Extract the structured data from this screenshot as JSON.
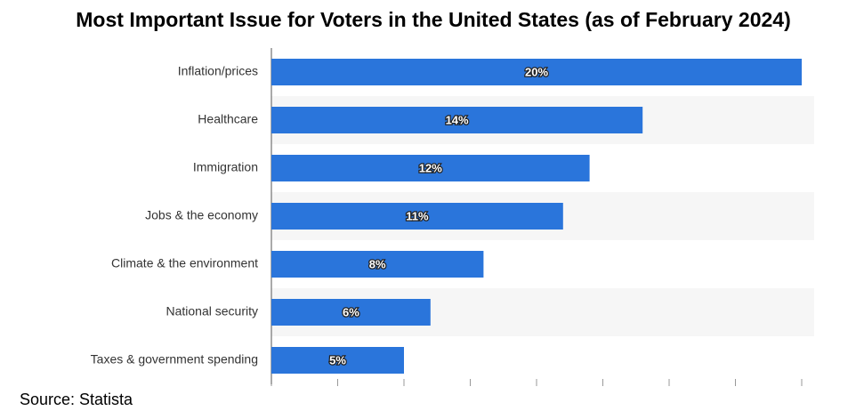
{
  "chart_data": {
    "type": "hbar",
    "title": "Most Important Issue for Voters in the United States (as of February 2024)",
    "source": "Source: Statista",
    "categories": [
      "Inflation/prices",
      "Healthcare",
      "Immigration",
      "Jobs & the economy",
      "Climate & the environment",
      "National security",
      "Taxes & government spending"
    ],
    "values": [
      20,
      14,
      12,
      11,
      8,
      6,
      5
    ],
    "value_labels": [
      "20%",
      "14%",
      "12%",
      "11%",
      "8%",
      "6%",
      "5%"
    ],
    "color": "#2a75db",
    "xlim": [
      0,
      20
    ],
    "xticks": [
      0,
      2.5,
      5,
      7.5,
      10,
      12.5,
      15,
      17.5,
      20
    ]
  }
}
